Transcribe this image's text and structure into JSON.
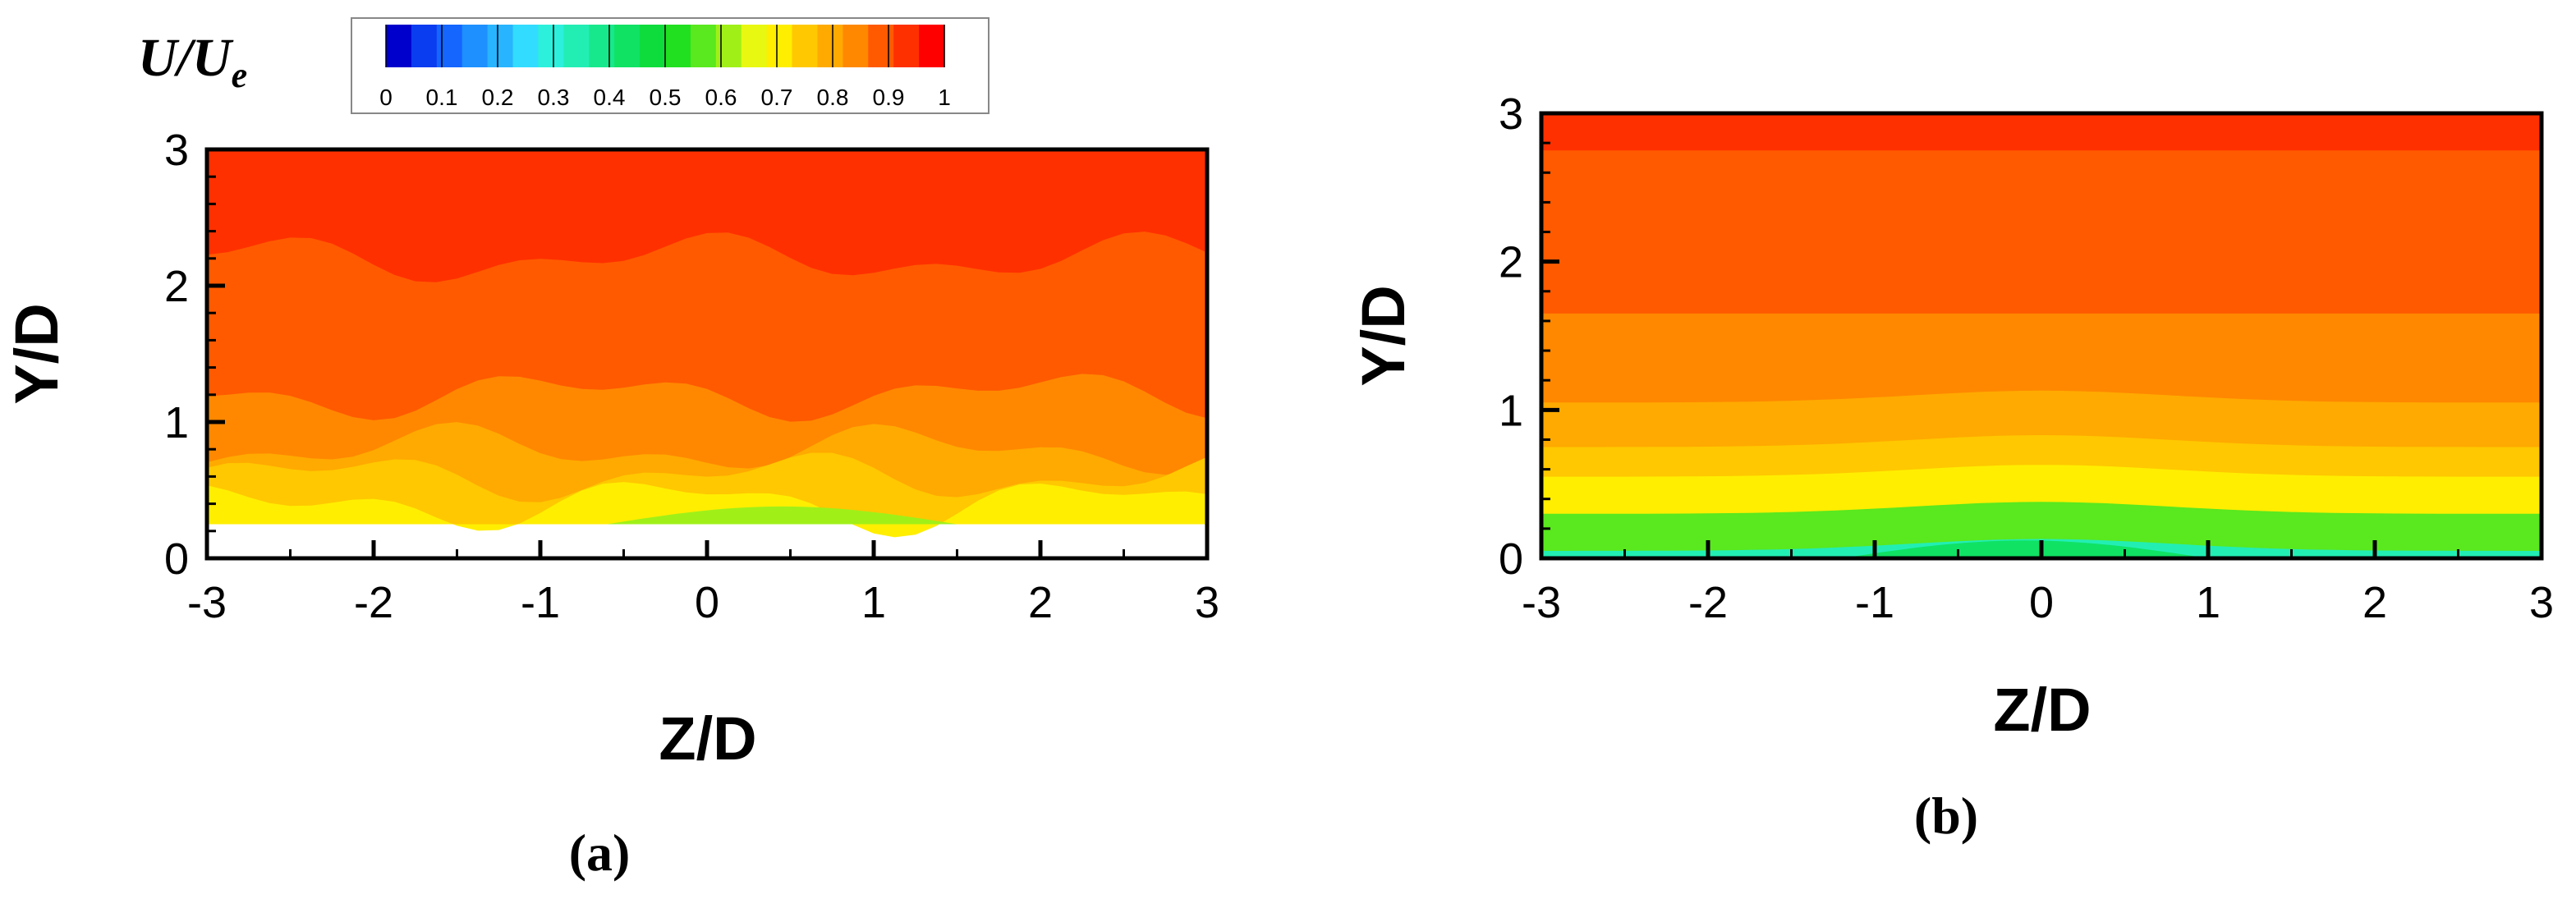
{
  "colorbar": {
    "title": "U/U",
    "title_subscript": "e",
    "ticks": [
      "0",
      "0.1",
      "0.2",
      "0.3",
      "0.4",
      "0.5",
      "0.6",
      "0.7",
      "0.8",
      "0.9",
      "1"
    ],
    "levels": [
      0,
      0.05,
      0.1,
      0.15,
      0.2,
      0.25,
      0.3,
      0.35,
      0.4,
      0.45,
      0.5,
      0.55,
      0.6,
      0.65,
      0.7,
      0.75,
      0.8,
      0.85,
      0.9,
      0.95,
      1.0
    ],
    "colors": [
      "#0000cc",
      "#0a3cf0",
      "#1466ff",
      "#1e90ff",
      "#28b4ff",
      "#32dcff",
      "#2cf0dc",
      "#22eeb4",
      "#18e88c",
      "#10e264",
      "#0edc3c",
      "#20e020",
      "#5ae81e",
      "#a0f018",
      "#e8f810",
      "#ffee00",
      "#ffc800",
      "#ffaa00",
      "#ff8800",
      "#ff5a00",
      "#ff3000",
      "#ff0000"
    ]
  },
  "chart_data": [
    {
      "type": "heatmap",
      "panel_label": "(a)",
      "xlabel": "Z/D",
      "ylabel": "Y/D",
      "xlim": [
        -3,
        3
      ],
      "ylim": [
        0,
        3
      ],
      "x_ticks": [
        "-3",
        "-2",
        "-1",
        "0",
        "1",
        "2",
        "3"
      ],
      "y_ticks": [
        "0",
        "1",
        "2",
        "3"
      ],
      "measured_y_min": 0.25,
      "variable": "U/Ue",
      "bands": [
        {
          "y_from": 0.25,
          "y_to": 0.4,
          "value": 0.7,
          "note": "green core near Z=0 to 1 (~0.6)"
        },
        {
          "y_from": 0.4,
          "y_to": 0.6,
          "value": 0.75
        },
        {
          "y_from": 0.6,
          "y_to": 0.8,
          "value": 0.8
        },
        {
          "y_from": 0.8,
          "y_to": 1.2,
          "value": 0.85
        },
        {
          "y_from": 1.2,
          "y_to": 2.2,
          "value": 0.9
        },
        {
          "y_from": 2.2,
          "y_to": 3.0,
          "value": 0.95
        }
      ]
    },
    {
      "type": "heatmap",
      "panel_label": "(b)",
      "xlabel": "Z/D",
      "ylabel": "Y/D",
      "xlim": [
        -3,
        3
      ],
      "ylim": [
        0,
        3
      ],
      "x_ticks": [
        "-3",
        "-2",
        "-1",
        "0",
        "1",
        "2",
        "3"
      ],
      "y_ticks": [
        "0",
        "1",
        "2",
        "3"
      ],
      "variable": "U/Ue",
      "bands": [
        {
          "y_from": 0.0,
          "y_to": 0.05,
          "value": 0.3
        },
        {
          "y_from": 0.05,
          "y_to": 0.3,
          "value": 0.55
        },
        {
          "y_from": 0.3,
          "y_to": 0.55,
          "value": 0.7
        },
        {
          "y_from": 0.55,
          "y_to": 0.75,
          "value": 0.75
        },
        {
          "y_from": 0.75,
          "y_to": 1.05,
          "value": 0.8
        },
        {
          "y_from": 1.05,
          "y_to": 1.65,
          "value": 0.85
        },
        {
          "y_from": 1.65,
          "y_to": 2.75,
          "value": 0.9
        },
        {
          "y_from": 2.75,
          "y_to": 3.0,
          "value": 0.95
        }
      ]
    }
  ]
}
